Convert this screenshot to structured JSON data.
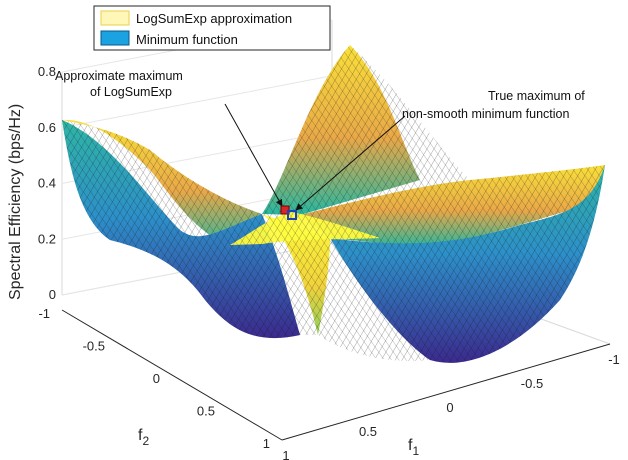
{
  "chart_data": {
    "type": "surface",
    "title": "",
    "zlabel": "Spectral Efficiency (bps/Hz)",
    "xlabel_base": "f",
    "xlabel_sub": "1",
    "ylabel_base": "f",
    "ylabel_sub": "2",
    "xlim": [
      -1,
      1
    ],
    "ylim": [
      -1,
      1
    ],
    "zlim": [
      0,
      0.8
    ],
    "x_ticks": [
      "-1",
      "-0.5",
      "0",
      "0.5",
      "1"
    ],
    "y_ticks": [
      "-1",
      "-0.5",
      "0",
      "0.5",
      "1"
    ],
    "z_ticks": [
      "0",
      "0.2",
      "0.4",
      "0.6",
      "0.8"
    ],
    "grid": true,
    "legend_position": "top-left",
    "series": [
      {
        "name": "LogSumExp approximation",
        "color": "#f4e14a"
      },
      {
        "name": "Minimum function",
        "color": "#1aa3e0"
      }
    ],
    "points": [
      {
        "name": "Approximate maximum of LogSumExp",
        "x": 0.02,
        "y": 0.02,
        "z": 0.29,
        "color": "#d62728"
      },
      {
        "name": "True maximum of non-smooth minimum function",
        "x": 0,
        "y": 0,
        "z": 0.28,
        "color": "#1f3fbf"
      }
    ],
    "annotations": [
      {
        "lines": [
          "Approximate maximum",
          "of LogSumExp"
        ]
      },
      {
        "lines": [
          "True maximum of",
          "non-smooth minimum function"
        ]
      }
    ]
  }
}
